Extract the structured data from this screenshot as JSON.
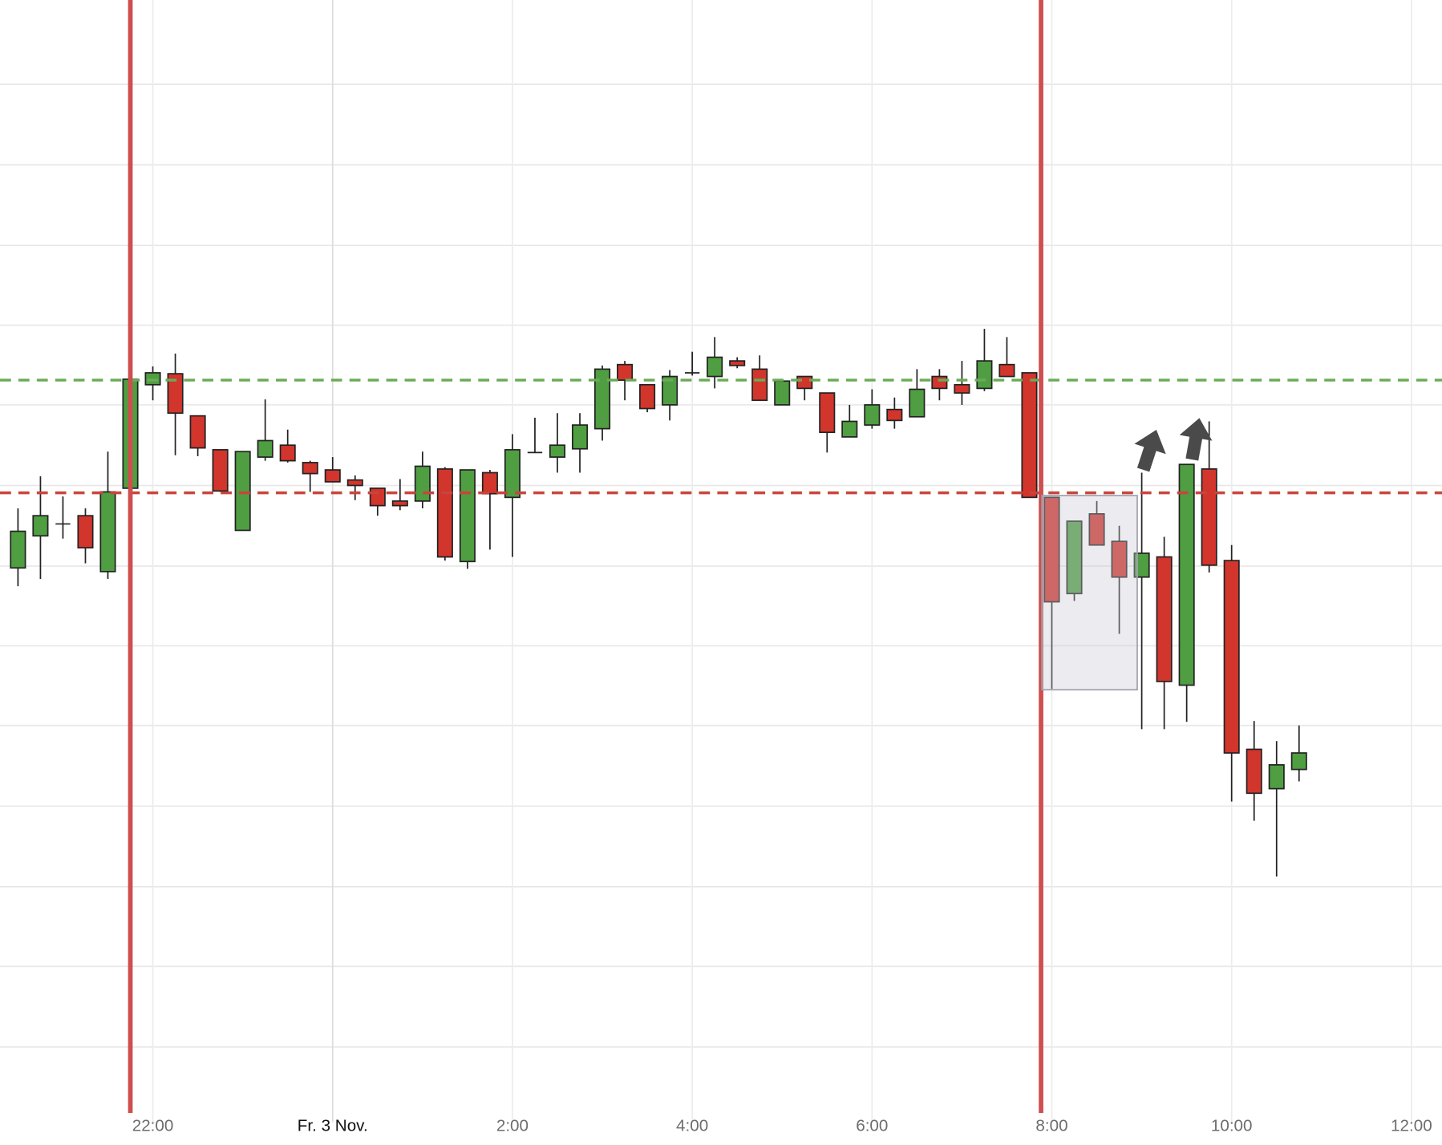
{
  "chart_data": {
    "type": "candlestick",
    "x": [
      -3.5,
      -3.25,
      -3,
      -2.75,
      -2.5,
      -2.25,
      -2,
      -1.75,
      -1.5,
      -1.25,
      -1,
      -0.75,
      -0.5,
      -0.25,
      0,
      0.25,
      0.5,
      0.75,
      1,
      1.25,
      1.5,
      1.75,
      2,
      2.25,
      2.5,
      2.75,
      3,
      3.25,
      3.5,
      3.75,
      4,
      4.25,
      4.5,
      4.75,
      5,
      5.25,
      5.5,
      5.75,
      6,
      6.25,
      6.5,
      6.75,
      7,
      7.25,
      7.5,
      7.75,
      8,
      8.25,
      8.5,
      8.75,
      9,
      9.25,
      9.5,
      9.75,
      10,
      10.25,
      10.5,
      10.75
    ],
    "open": [
      61.0,
      64.5,
      65.8,
      66.7,
      60.6,
      69.7,
      81.0,
      82.2,
      77.6,
      73.9,
      65.1,
      73.1,
      74.4,
      72.5,
      71.7,
      70.6,
      69.7,
      68.3,
      68.3,
      71.8,
      61.7,
      71.4,
      68.7,
      73.6,
      73.1,
      74.0,
      76.2,
      83.2,
      81.0,
      78.8,
      82.3,
      81.9,
      83.6,
      82.7,
      78.8,
      81.9,
      80.1,
      75.3,
      76.6,
      78.3,
      77.5,
      81.9,
      81.0,
      80.6,
      83.2,
      82.3,
      68.7,
      58.2,
      66.9,
      63.9,
      60.0,
      62.2,
      48.2,
      71.8,
      61.8,
      41.2,
      36.9,
      39.0
    ],
    "high": [
      67.5,
      71.0,
      68.8,
      67.5,
      73.7,
      81.6,
      83.0,
      84.4,
      77.6,
      73.9,
      73.7,
      79.4,
      76.1,
      72.7,
      73.1,
      71.1,
      69.7,
      70.7,
      73.7,
      72.0,
      71.7,
      71.7,
      75.6,
      77.4,
      77.9,
      77.9,
      83.1,
      83.6,
      81.0,
      82.6,
      84.6,
      86.2,
      84.0,
      84.2,
      81.4,
      81.9,
      80.1,
      78.8,
      80.5,
      79.6,
      82.7,
      82.7,
      83.6,
      87.1,
      86.2,
      82.3,
      68.7,
      66.1,
      68.3,
      65.6,
      71.4,
      64.4,
      72.3,
      77.0,
      63.5,
      44.3,
      42.1,
      43.8
    ],
    "low": [
      59.0,
      59.8,
      64.2,
      61.5,
      59.8,
      67.7,
      79.3,
      73.3,
      73.2,
      69.3,
      65.1,
      72.7,
      72.5,
      69.3,
      70.4,
      68.4,
      66.7,
      67.3,
      67.5,
      61.8,
      60.9,
      63.0,
      62.2,
      73.6,
      71.4,
      71.4,
      74.9,
      79.3,
      78.0,
      77.1,
      82.0,
      80.6,
      82.8,
      79.3,
      78.8,
      79.3,
      73.6,
      75.3,
      76.2,
      76.2,
      77.5,
      79.3,
      78.8,
      80.3,
      81.9,
      68.7,
      47.8,
      57.4,
      63.5,
      53.8,
      43.4,
      43.4,
      44.2,
      60.5,
      35.5,
      33.4,
      27.3,
      37.7
    ],
    "close": [
      65.0,
      66.7,
      65.8,
      63.2,
      69.3,
      81.6,
      82.3,
      77.9,
      74.1,
      69.4,
      73.7,
      74.9,
      72.7,
      71.3,
      70.4,
      70.0,
      67.8,
      67.8,
      72.1,
      62.2,
      71.7,
      69.1,
      73.9,
      73.6,
      74.4,
      76.6,
      82.7,
      81.5,
      78.4,
      81.9,
      82.3,
      84.0,
      83.1,
      79.3,
      81.4,
      80.6,
      75.8,
      77.0,
      78.8,
      77.1,
      80.5,
      80.6,
      80.1,
      83.6,
      81.9,
      68.7,
      57.3,
      66.1,
      63.5,
      60.0,
      62.6,
      48.6,
      72.3,
      61.3,
      40.8,
      36.4,
      39.5,
      40.8
    ],
    "up_color": "#4f9e42",
    "down_color": "#d2352c",
    "xlim": [
      -3.7,
      12.34
    ],
    "xticks": [
      {
        "value": -2,
        "label": "22:00"
      },
      {
        "value": 0,
        "label": "Fr. 3 Nov."
      },
      {
        "value": 2,
        "label": "2:00"
      },
      {
        "value": 4,
        "label": "4:00"
      },
      {
        "value": 6,
        "label": "6:00"
      },
      {
        "value": 8,
        "label": "8:00"
      },
      {
        "value": 10,
        "label": "10:00"
      },
      {
        "value": 12,
        "label": "12:00"
      }
    ],
    "ylim": [
      1.5,
      123.0
    ],
    "ygrid": [
      113.8,
      105.0,
      96.2,
      87.5,
      78.8,
      70.0,
      61.2,
      52.5,
      43.8,
      35.0,
      26.2,
      17.5,
      8.7
    ],
    "grid": true,
    "hlines": [
      {
        "value": 81.5,
        "color": "#6aab57"
      },
      {
        "value": 69.2,
        "color": "#c9443c"
      }
    ],
    "vlines": [
      {
        "value": -2.25,
        "color": "#cf4f4f"
      },
      {
        "value": 7.88,
        "color": "#cf4f4f"
      }
    ],
    "box": {
      "x": [
        7.89,
        8.95
      ],
      "y": [
        47.7,
        68.9
      ]
    }
  }
}
